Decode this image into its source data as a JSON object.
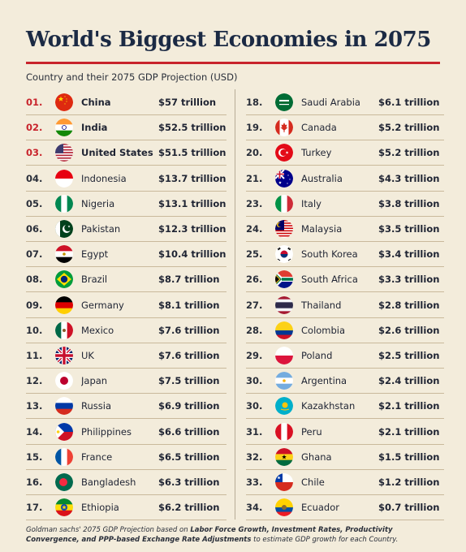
{
  "header": {
    "title": "World's Biggest Economies in 2075",
    "subtitle": "Country and their 2075 GDP Projection (USD)"
  },
  "footnote": {
    "source": "Goldman sachs' 2075 GDP Projection based on",
    "factors": "Labor Force Growth, Investment Rates, Productivity Convergence, and PPP-based Exchange Rate Adjustments",
    "suffix": "to estimate GDP growth for each Country."
  },
  "chart_data": {
    "type": "table",
    "title": "World's Biggest Economies in 2075",
    "subtitle": "Country and their 2075 GDP Projection (USD)",
    "columns": [
      "Rank",
      "Country",
      "2075 GDP Projection"
    ],
    "rows": [
      {
        "rank": "01.",
        "country": "China",
        "value": "$57 trillion",
        "gdp_trillion": 57,
        "flag": "china-flag-icon"
      },
      {
        "rank": "02.",
        "country": "India",
        "value": "$52.5 trillion",
        "gdp_trillion": 52.5,
        "flag": "india-flag-icon"
      },
      {
        "rank": "03.",
        "country": "United States",
        "value": "$51.5 trillion",
        "gdp_trillion": 51.5,
        "flag": "usa-flag-icon"
      },
      {
        "rank": "04.",
        "country": "Indonesia",
        "value": "$13.7 trillion",
        "gdp_trillion": 13.7,
        "flag": "indonesia-flag-icon"
      },
      {
        "rank": "05.",
        "country": "Nigeria",
        "value": "$13.1 trillion",
        "gdp_trillion": 13.1,
        "flag": "nigeria-flag-icon"
      },
      {
        "rank": "06.",
        "country": "Pakistan",
        "value": "$12.3 trillion",
        "gdp_trillion": 12.3,
        "flag": "pakistan-flag-icon"
      },
      {
        "rank": "07.",
        "country": "Egypt",
        "value": "$10.4 trillion",
        "gdp_trillion": 10.4,
        "flag": "egypt-flag-icon"
      },
      {
        "rank": "08.",
        "country": "Brazil",
        "value": "$8.7 trillion",
        "gdp_trillion": 8.7,
        "flag": "brazil-flag-icon"
      },
      {
        "rank": "09.",
        "country": "Germany",
        "value": "$8.1 trillion",
        "gdp_trillion": 8.1,
        "flag": "germany-flag-icon"
      },
      {
        "rank": "10.",
        "country": "Mexico",
        "value": "$7.6 trillion",
        "gdp_trillion": 7.6,
        "flag": "mexico-flag-icon"
      },
      {
        "rank": "11.",
        "country": "UK",
        "value": "$7.6 trillion",
        "gdp_trillion": 7.6,
        "flag": "uk-flag-icon"
      },
      {
        "rank": "12.",
        "country": "Japan",
        "value": "$7.5 trillion",
        "gdp_trillion": 7.5,
        "flag": "japan-flag-icon"
      },
      {
        "rank": "13.",
        "country": "Russia",
        "value": "$6.9 trillion",
        "gdp_trillion": 6.9,
        "flag": "russia-flag-icon"
      },
      {
        "rank": "14.",
        "country": "Philippines",
        "value": "$6.6 trillion",
        "gdp_trillion": 6.6,
        "flag": "philippines-flag-icon"
      },
      {
        "rank": "15.",
        "country": "France",
        "value": "$6.5 trillion",
        "gdp_trillion": 6.5,
        "flag": "france-flag-icon"
      },
      {
        "rank": "16.",
        "country": "Bangladesh",
        "value": "$6.3 trillion",
        "gdp_trillion": 6.3,
        "flag": "bangladesh-flag-icon"
      },
      {
        "rank": "17.",
        "country": "Ethiopia",
        "value": "$6.2 trillion",
        "gdp_trillion": 6.2,
        "flag": "ethiopia-flag-icon"
      },
      {
        "rank": "18.",
        "country": "Saudi Arabia",
        "value": "$6.1 trillion",
        "gdp_trillion": 6.1,
        "flag": "saudi-arabia-flag-icon"
      },
      {
        "rank": "19.",
        "country": "Canada",
        "value": "$5.2 trillion",
        "gdp_trillion": 5.2,
        "flag": "canada-flag-icon"
      },
      {
        "rank": "20.",
        "country": "Turkey",
        "value": "$5.2 trillion",
        "gdp_trillion": 5.2,
        "flag": "turkey-flag-icon"
      },
      {
        "rank": "21.",
        "country": "Australia",
        "value": "$4.3 trillion",
        "gdp_trillion": 4.3,
        "flag": "australia-flag-icon"
      },
      {
        "rank": "23.",
        "country": "Italy",
        "value": "$3.8 trillion",
        "gdp_trillion": 3.8,
        "flag": "italy-flag-icon"
      },
      {
        "rank": "24.",
        "country": "Malaysia",
        "value": "$3.5 trillion",
        "gdp_trillion": 3.5,
        "flag": "malaysia-flag-icon"
      },
      {
        "rank": "25.",
        "country": "South Korea",
        "value": "$3.4 trillion",
        "gdp_trillion": 3.4,
        "flag": "south-korea-flag-icon"
      },
      {
        "rank": "26.",
        "country": "South Africa",
        "value": "$3.3 trillion",
        "gdp_trillion": 3.3,
        "flag": "south-africa-flag-icon"
      },
      {
        "rank": "27.",
        "country": "Thailand",
        "value": "$2.8 trillion",
        "gdp_trillion": 2.8,
        "flag": "thailand-flag-icon"
      },
      {
        "rank": "28.",
        "country": "Colombia",
        "value": "$2.6 trillion",
        "gdp_trillion": 2.6,
        "flag": "colombia-flag-icon"
      },
      {
        "rank": "29.",
        "country": "Poland",
        "value": "$2.5 trillion",
        "gdp_trillion": 2.5,
        "flag": "poland-flag-icon"
      },
      {
        "rank": "30.",
        "country": "Argentina",
        "value": "$2.4 trillion",
        "gdp_trillion": 2.4,
        "flag": "argentina-flag-icon"
      },
      {
        "rank": "30.",
        "country": "Kazakhstan",
        "value": "$2.1 trillion",
        "gdp_trillion": 2.1,
        "flag": "kazakhstan-flag-icon"
      },
      {
        "rank": "31.",
        "country": "Peru",
        "value": "$2.1 trillion",
        "gdp_trillion": 2.1,
        "flag": "peru-flag-icon"
      },
      {
        "rank": "32.",
        "country": "Ghana",
        "value": "$1.5 trillion",
        "gdp_trillion": 1.5,
        "flag": "ghana-flag-icon"
      },
      {
        "rank": "33.",
        "country": "Chile",
        "value": "$1.2 trillion",
        "gdp_trillion": 1.2,
        "flag": "chile-flag-icon"
      },
      {
        "rank": "34.",
        "country": "Ecuador",
        "value": "$0.7 trillion",
        "gdp_trillion": 0.7,
        "flag": "ecuador-flag-icon"
      }
    ],
    "highlight_color": "#c8242c"
  }
}
